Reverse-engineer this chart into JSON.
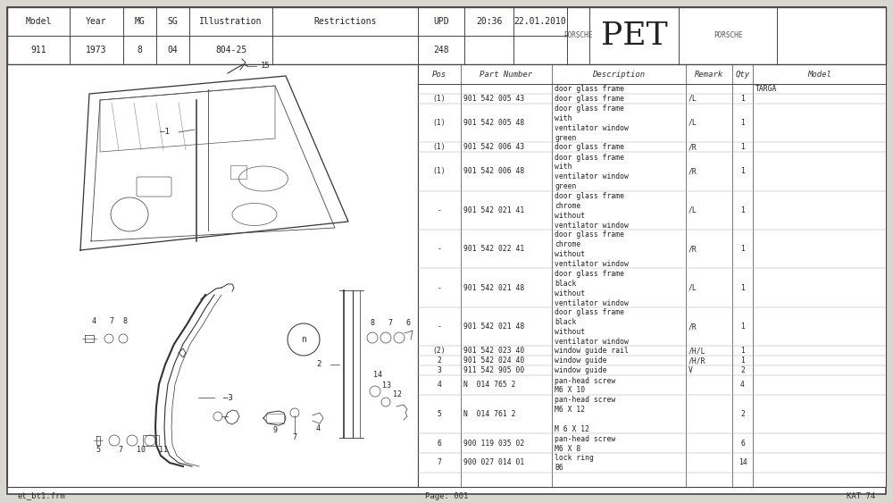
{
  "bg_color": "#e8e8e0",
  "page_bg": "#ffffff",
  "header": {
    "model": "911",
    "year": "1973",
    "mg": "8",
    "sg": "04",
    "illustration": "804-25",
    "restrictions": "",
    "upd": "248",
    "time": "20:36",
    "date": "22.01.2010",
    "title": "PET"
  },
  "footer": {
    "left": "et_bt1.frm",
    "center": "Page: 001",
    "right": "KAT 74"
  },
  "table_columns": [
    "Pos",
    "Part Number",
    "Description",
    "Remark",
    "Qty",
    "Model"
  ],
  "table_rows": [
    [
      "",
      "",
      "door glass frame",
      "",
      "",
      "TARGA"
    ],
    [
      "(1)",
      "901 542 005 43",
      "door glass frame",
      "/L",
      "1",
      ""
    ],
    [
      "(1)",
      "901 542 005 48",
      "door glass frame\nwith\nventilator window\ngreen",
      "/L",
      "1",
      ""
    ],
    [
      "(1)",
      "901 542 006 43",
      "door glass frame",
      "/R",
      "1",
      ""
    ],
    [
      "(1)",
      "901 542 006 48",
      "door glass frame\nwith\nventilator window\ngreen",
      "/R",
      "1",
      ""
    ],
    [
      "-",
      "901 542 021 41",
      "door glass frame\nchrome\nwithout\nventilator window",
      "/L",
      "1",
      ""
    ],
    [
      "-",
      "901 542 022 41",
      "door glass frame\nchrome\nwithout\nventilator window",
      "/R",
      "1",
      ""
    ],
    [
      "-",
      "901 542 021 48",
      "door glass frame\nblack\nwithout\nventilator window",
      "/L",
      "1",
      ""
    ],
    [
      "-",
      "901 542 021 48",
      "door glass frame\nblack\nwithout\nventilator window",
      "/R",
      "1",
      ""
    ],
    [
      "(2)",
      "901 542 023 40",
      "window guide rail",
      "/H/L",
      "1",
      ""
    ],
    [
      "2",
      "901 542 024 40",
      "window guide",
      "/H/R",
      "1",
      ""
    ],
    [
      "3",
      "911 542 905 00",
      "window guide",
      "V",
      "2",
      ""
    ],
    [
      "4",
      "N  014 765 2",
      "pan-head screw\nM6 X 10",
      "",
      "4",
      ""
    ],
    [
      "5",
      "N  014 761 2",
      "pan-head screw\nM6 X 12\n\nM 6 X 12",
      "",
      "2",
      ""
    ],
    [
      "6",
      "900 119 035 02",
      "pan-head screw\nM6 X 8",
      "",
      "6",
      ""
    ],
    [
      "7",
      "900 027 014 01",
      "lock ring\nB6",
      "",
      "14",
      ""
    ]
  ]
}
